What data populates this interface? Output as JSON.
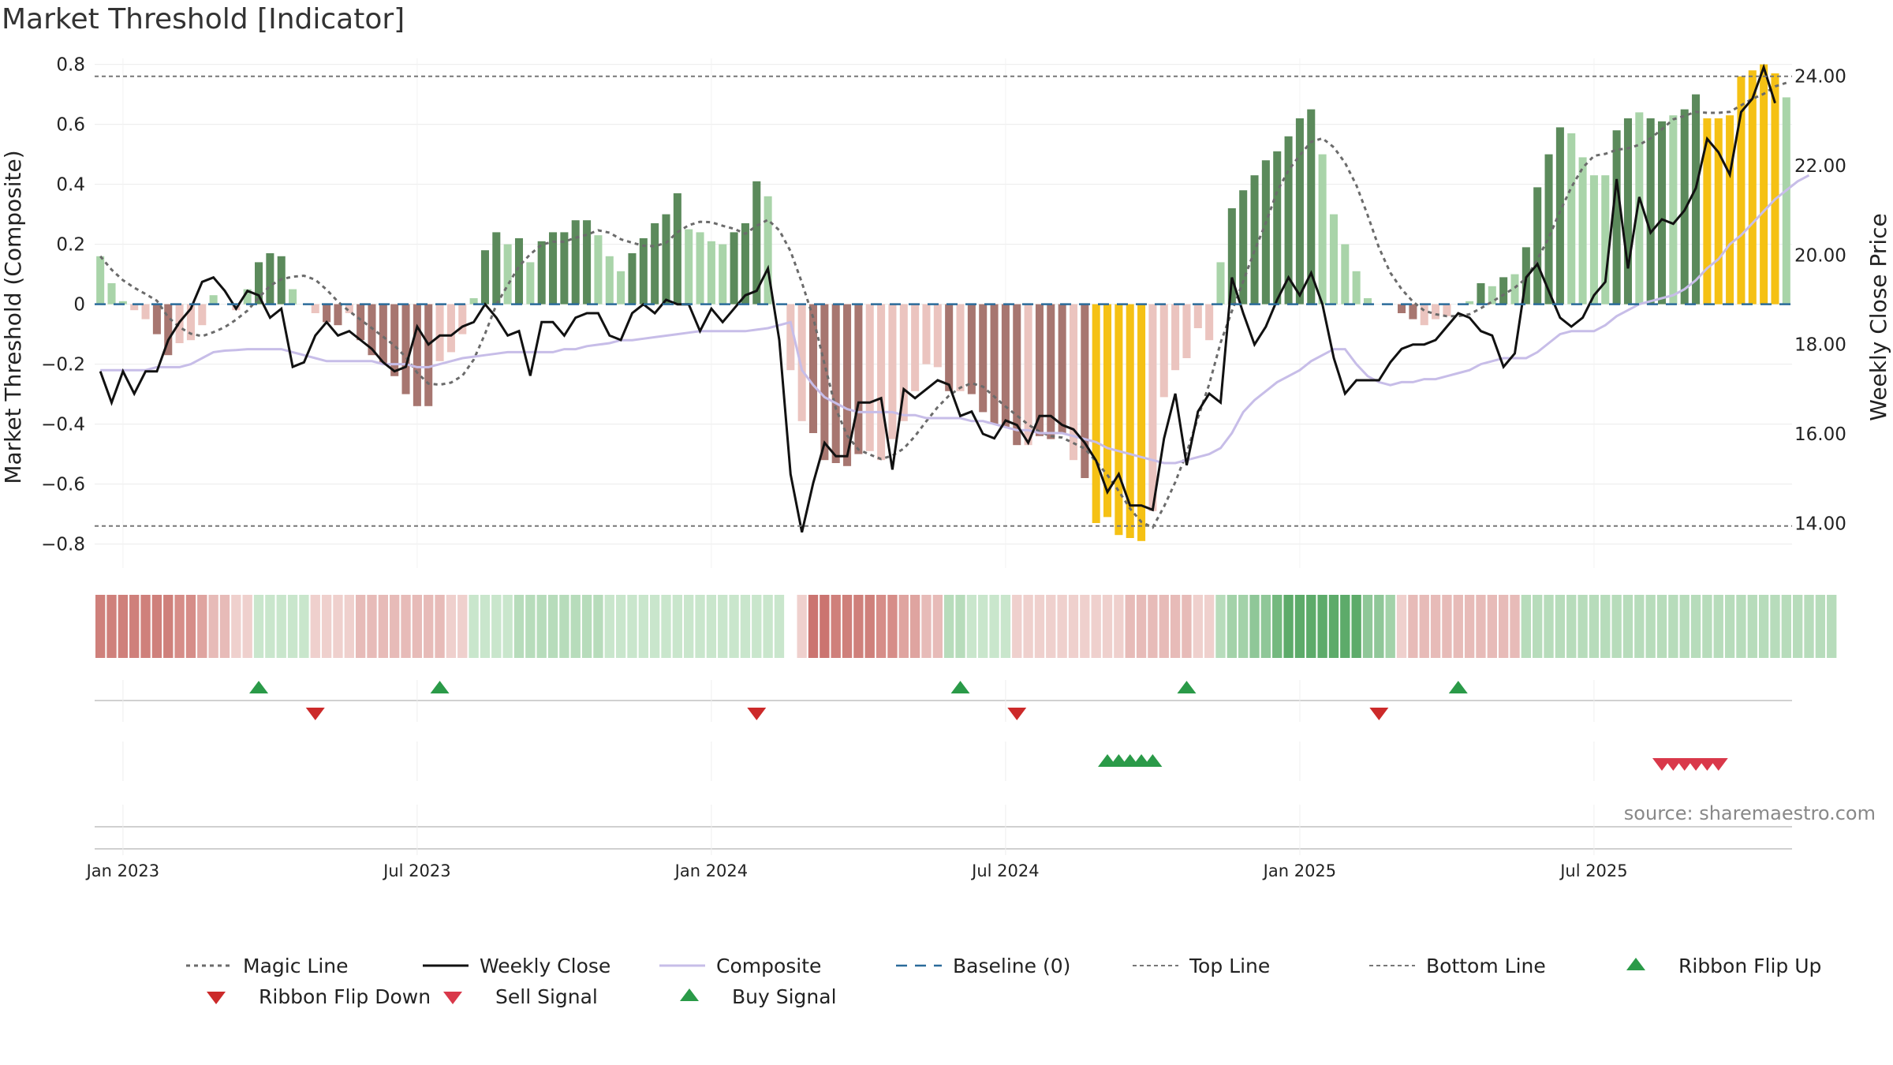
{
  "title": "Market Threshold [Indicator]",
  "source_text": "source: sharemaestro.com",
  "colors": {
    "dark_green": "#5b8a5b",
    "light_green": "#a9d4a9",
    "dark_red": "#a77670",
    "light_red": "#ebc4bf",
    "yellow": "#f5c114",
    "composite_line": "#c7bde8",
    "baseline": "#2b6b9a",
    "buy": "#2a9a48",
    "sell": "#d9384a",
    "flip_down": "#cc2a2a"
  },
  "chart_data": {
    "type": "bar",
    "x_label": "",
    "y_label_left": "Market Threshold (Composite)",
    "y_label_right": "Weekly Close Price",
    "y_left_range": [
      -0.88,
      0.82
    ],
    "y_right_range": [
      13.0,
      24.4
    ],
    "y_left_ticks": [
      "0.8",
      "0.6",
      "0.4",
      "0.2",
      "0",
      "−0.2",
      "−0.4",
      "−0.6",
      "−0.8"
    ],
    "y_left_tick_values": [
      0.8,
      0.6,
      0.4,
      0.2,
      0,
      -0.2,
      -0.4,
      -0.6,
      -0.8
    ],
    "y_right_ticks": [
      "24.00",
      "22.00",
      "20.00",
      "18.00",
      "16.00",
      "14.00"
    ],
    "y_right_tick_values": [
      24,
      22,
      20,
      18,
      16,
      14
    ],
    "x_ticks": [
      "Jan 2023",
      "Jul 2023",
      "Jan 2024",
      "Jul 2024",
      "Jan 2025",
      "Jul 2025"
    ],
    "x_tick_weeks": [
      2,
      28,
      54,
      80,
      106,
      132
    ],
    "top_line": 0.76,
    "bottom_line": -0.74,
    "composite_bars": [
      0.16,
      0.07,
      0.01,
      -0.02,
      -0.05,
      -0.1,
      -0.17,
      -0.13,
      -0.12,
      -0.07,
      0.03,
      0,
      -0.02,
      0.05,
      0.14,
      0.17,
      0.16,
      0.05,
      0,
      -0.03,
      -0.06,
      -0.07,
      -0.03,
      -0.12,
      -0.17,
      -0.2,
      -0.24,
      -0.3,
      -0.34,
      -0.34,
      -0.19,
      -0.16,
      -0.1,
      0.02,
      0.18,
      0.24,
      0.2,
      0.22,
      0.14,
      0.21,
      0.24,
      0.24,
      0.28,
      0.28,
      0.23,
      0.16,
      0.11,
      0.17,
      0.22,
      0.27,
      0.3,
      0.37,
      0.25,
      0.24,
      0.21,
      0.2,
      0.24,
      0.27,
      0.41,
      0.36,
      0,
      -0.22,
      -0.39,
      -0.43,
      -0.52,
      -0.53,
      -0.54,
      -0.5,
      -0.49,
      -0.52,
      -0.45,
      -0.39,
      -0.29,
      -0.2,
      -0.21,
      -0.29,
      -0.29,
      -0.3,
      -0.36,
      -0.4,
      -0.41,
      -0.47,
      -0.47,
      -0.44,
      -0.45,
      -0.43,
      -0.52,
      -0.58,
      -0.73,
      -0.71,
      -0.77,
      -0.78,
      -0.79,
      -0.69,
      -0.31,
      -0.22,
      -0.18,
      -0.08,
      -0.12,
      0.14,
      0.32,
      0.38,
      0.43,
      0.48,
      0.51,
      0.56,
      0.62,
      0.65,
      0.5,
      0.3,
      0.2,
      0.11,
      0.02,
      0,
      0,
      -0.03,
      -0.05,
      -0.07,
      -0.05,
      -0.04,
      0,
      0.01,
      0.07,
      0.06,
      0.09,
      0.1,
      0.19,
      0.39,
      0.5,
      0.59,
      0.57,
      0.49,
      0.43,
      0.43,
      0.58,
      0.62,
      0.64,
      0.62,
      0.61,
      0.63,
      0.65,
      0.7,
      0.62,
      0.62,
      0.63,
      0.76,
      0.78,
      0.8,
      0.77,
      0.69
    ],
    "bar_tones": [
      "lg",
      "lg",
      "lg",
      "lr",
      "lr",
      "dr",
      "dr",
      "lr",
      "lr",
      "lr",
      "lg",
      "lr",
      "lr",
      "lg",
      "dg",
      "dg",
      "dg",
      "lg",
      "lg",
      "lr",
      "dr",
      "dr",
      "lr",
      "dr",
      "dr",
      "dr",
      "dr",
      "dr",
      "dr",
      "dr",
      "lr",
      "lr",
      "lr",
      "lg",
      "dg",
      "dg",
      "lg",
      "dg",
      "lg",
      "dg",
      "dg",
      "dg",
      "dg",
      "dg",
      "lg",
      "lg",
      "lg",
      "dg",
      "dg",
      "dg",
      "dg",
      "dg",
      "lg",
      "lg",
      "lg",
      "lg",
      "dg",
      "dg",
      "dg",
      "lg",
      "lg",
      "lr",
      "lr",
      "dr",
      "dr",
      "dr",
      "dr",
      "dr",
      "lr",
      "lr",
      "lr",
      "lr",
      "lr",
      "lr",
      "lr",
      "dr",
      "lr",
      "dr",
      "dr",
      "dr",
      "dr",
      "dr",
      "lr",
      "dr",
      "dr",
      "dr",
      "lr",
      "dr",
      "y",
      "y",
      "y",
      "y",
      "y",
      "lr",
      "lr",
      "lr",
      "lr",
      "lr",
      "lr",
      "lg",
      "dg",
      "dg",
      "dg",
      "dg",
      "dg",
      "dg",
      "dg",
      "dg",
      "lg",
      "lg",
      "lg",
      "lg",
      "lg",
      "lg",
      "lr",
      "dr",
      "dr",
      "lr",
      "lr",
      "lr",
      "lg",
      "lg",
      "dg",
      "lg",
      "dg",
      "lg",
      "dg",
      "dg",
      "dg",
      "dg",
      "lg",
      "lg",
      "lg",
      "lg",
      "dg",
      "dg",
      "lg",
      "dg",
      "dg",
      "lg",
      "dg",
      "dg",
      "y",
      "y",
      "y",
      "y",
      "y",
      "y",
      "y"
    ],
    "weekly_close": [
      17.4,
      16.7,
      17.4,
      16.9,
      17.4,
      17.4,
      18.1,
      18.5,
      18.8,
      19.4,
      19.5,
      19.2,
      18.8,
      19.2,
      19.1,
      18.6,
      18.8,
      17.5,
      17.6,
      18.2,
      18.5,
      18.2,
      18.3,
      18.1,
      17.9,
      17.6,
      17.4,
      17.5,
      18.4,
      18.0,
      18.2,
      18.2,
      18.4,
      18.5,
      18.9,
      18.6,
      18.2,
      18.3,
      17.3,
      18.5,
      18.5,
      18.2,
      18.6,
      18.7,
      18.7,
      18.2,
      18.1,
      18.7,
      18.9,
      18.7,
      19.0,
      18.9,
      18.9,
      18.3,
      18.8,
      18.5,
      18.8,
      19.1,
      19.2,
      19.7,
      18.1,
      15.1,
      13.8,
      14.9,
      15.8,
      15.5,
      15.5,
      16.7,
      16.7,
      16.8,
      15.2,
      17.0,
      16.8,
      17.0,
      17.2,
      17.1,
      16.4,
      16.5,
      16.0,
      15.9,
      16.3,
      16.2,
      15.8,
      16.4,
      16.4,
      16.2,
      16.1,
      15.8,
      15.4,
      14.7,
      15.1,
      14.4,
      14.4,
      14.3,
      15.9,
      16.9,
      15.3,
      16.5,
      16.9,
      16.7,
      19.5,
      18.7,
      18.0,
      18.4,
      19.0,
      19.5,
      19.1,
      19.6,
      18.9,
      17.7,
      16.9,
      17.2,
      17.2,
      17.2,
      17.6,
      17.9,
      18.0,
      18.0,
      18.1,
      18.4,
      18.7,
      18.6,
      18.3,
      18.2,
      17.5,
      17.8,
      19.5,
      19.8,
      19.2,
      18.6,
      18.4,
      18.6,
      19.1,
      19.4,
      21.7,
      19.7,
      21.3,
      20.5,
      20.8,
      20.7,
      21.0,
      21.5,
      22.6,
      22.3,
      21.8,
      23.2,
      23.5,
      24.2,
      23.4
    ],
    "composite_line": [
      -0.22,
      -0.22,
      -0.22,
      -0.22,
      -0.22,
      -0.21,
      -0.21,
      -0.21,
      -0.2,
      -0.18,
      -0.16,
      -0.155,
      -0.153,
      -0.15,
      -0.15,
      -0.15,
      -0.15,
      -0.16,
      -0.17,
      -0.18,
      -0.19,
      -0.19,
      -0.19,
      -0.19,
      -0.19,
      -0.2,
      -0.2,
      -0.2,
      -0.21,
      -0.21,
      -0.2,
      -0.19,
      -0.18,
      -0.175,
      -0.17,
      -0.165,
      -0.16,
      -0.16,
      -0.16,
      -0.16,
      -0.16,
      -0.15,
      -0.15,
      -0.14,
      -0.135,
      -0.13,
      -0.12,
      -0.12,
      -0.115,
      -0.11,
      -0.105,
      -0.1,
      -0.095,
      -0.09,
      -0.09,
      -0.09,
      -0.09,
      -0.09,
      -0.085,
      -0.08,
      -0.07,
      -0.06,
      -0.22,
      -0.27,
      -0.31,
      -0.33,
      -0.35,
      -0.36,
      -0.36,
      -0.36,
      -0.36,
      -0.37,
      -0.37,
      -0.38,
      -0.38,
      -0.38,
      -0.38,
      -0.39,
      -0.39,
      -0.4,
      -0.41,
      -0.42,
      -0.42,
      -0.43,
      -0.43,
      -0.43,
      -0.44,
      -0.45,
      -0.46,
      -0.48,
      -0.49,
      -0.5,
      -0.51,
      -0.52,
      -0.53,
      -0.53,
      -0.52,
      -0.51,
      -0.5,
      -0.48,
      -0.43,
      -0.36,
      -0.32,
      -0.29,
      -0.26,
      -0.24,
      -0.22,
      -0.19,
      -0.17,
      -0.15,
      -0.15,
      -0.2,
      -0.24,
      -0.26,
      -0.27,
      -0.26,
      -0.26,
      -0.25,
      -0.25,
      -0.24,
      -0.23,
      -0.22,
      -0.2,
      -0.19,
      -0.18,
      -0.18,
      -0.18,
      -0.16,
      -0.13,
      -0.1,
      -0.09,
      -0.09,
      -0.09,
      -0.07,
      -0.04,
      -0.02,
      0,
      0.01,
      0.02,
      0.03,
      0.05,
      0.08,
      0.12,
      0.15,
      0.2,
      0.23,
      0.27,
      0.31,
      0.35,
      0.38,
      0.41,
      0.43
    ]
  },
  "ribbon": {
    "colors": [
      "#c96f6b",
      "#cb7470",
      "#cf807b",
      "#d68d88",
      "#dfa4a0",
      "#e7bbb8",
      "#efd0cd",
      "#f5e0de",
      "#c9e6cc",
      "#b7dcbb",
      "#a3d2a9",
      "#8fc798",
      "#74b97f",
      "#5dab6a",
      "#41a055"
    ],
    "levels": [
      -5,
      -5,
      -5,
      -5,
      -5,
      -5,
      -5,
      -4,
      -4,
      -3,
      -2,
      -2,
      -1,
      -1,
      1,
      1,
      1,
      1,
      1,
      -1,
      -1,
      -1,
      -1,
      -2,
      -2,
      -2,
      -2,
      -2,
      -2,
      -2,
      -2,
      -1,
      -1,
      1,
      1,
      1,
      1,
      2,
      2,
      2,
      2,
      2,
      2,
      2,
      2,
      1,
      1,
      1,
      1,
      1,
      1,
      1,
      1,
      1,
      1,
      1,
      1,
      1,
      1,
      1,
      1,
      0,
      -1,
      -6,
      -6,
      -5,
      -5,
      -5,
      -5,
      -4,
      -4,
      -3,
      -3,
      -2,
      -2,
      2,
      2,
      1,
      1,
      1,
      1,
      -1,
      -1,
      -1,
      -1,
      -1,
      -1,
      -1,
      -1,
      -1,
      -1,
      -2,
      -2,
      -2,
      -2,
      -2,
      -2,
      -1,
      -1,
      2,
      3,
      3,
      4,
      4,
      5,
      6,
      6,
      6,
      6,
      6,
      6,
      6,
      4,
      4,
      3,
      -1,
      -2,
      -2,
      -2,
      -2,
      -2,
      -2,
      -2,
      -2,
      -2,
      -2,
      2,
      2,
      2,
      2,
      2,
      2,
      2,
      2,
      2,
      2,
      2,
      2,
      2,
      2,
      2,
      2,
      2,
      2,
      2,
      2,
      2,
      2,
      2,
      2,
      2,
      2,
      2,
      2
    ],
    "ribbon_flip_up_weeks": [
      14,
      30,
      76,
      96,
      120
    ],
    "ribbon_flip_down_weeks": [
      19,
      58,
      81,
      113
    ],
    "buy_signal_weeks": [
      89,
      90,
      91,
      92,
      93
    ],
    "sell_signal_weeks": [
      138,
      139,
      140,
      141,
      142,
      143
    ]
  },
  "legend": [
    {
      "label": "Magic Line",
      "icon": "dotted-line"
    },
    {
      "label": "Weekly Close",
      "icon": "solid-line"
    },
    {
      "label": "Composite",
      "icon": "lavender-line"
    },
    {
      "label": "Baseline (0)",
      "icon": "dashed-line"
    },
    {
      "label": "Top Line",
      "icon": "thin-dotted-line"
    },
    {
      "label": "Bottom Line",
      "icon": "thin-dotted-line"
    },
    {
      "label": "Ribbon Flip Up",
      "icon": "green-triangle-up"
    },
    {
      "label": "Ribbon Flip Down",
      "icon": "red-triangle-down"
    },
    {
      "label": "Sell Signal",
      "icon": "red-triangle-down"
    },
    {
      "label": "Buy Signal",
      "icon": "green-triangle-up"
    }
  ]
}
